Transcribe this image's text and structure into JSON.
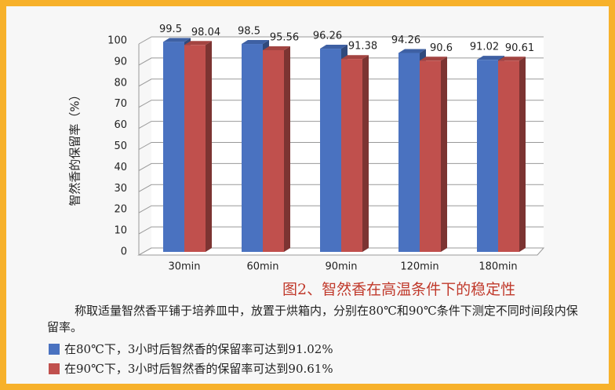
{
  "chart_data": {
    "type": "bar",
    "y_label": "智然香的保留率（%）",
    "caption": "图2、智然香在高温条件下的稳定性",
    "description": "称取适量智然香平铺于培养皿中，放置于烘箱内，分别在80℃和90℃条件下测定不同时间段内保留率。",
    "categories": [
      "30min",
      "60min",
      "90min",
      "120min",
      "180min"
    ],
    "series": [
      {
        "name": "在80℃下，3小时后智然香的保留率可达到91.02%",
        "color": "#4a72c0",
        "values": [
          99.5,
          98.5,
          96.26,
          94.26,
          91.02
        ]
      },
      {
        "name": "在90℃下，3小时后智然香的保留率可达到90.61%",
        "color": "#c0504d",
        "values": [
          98.04,
          95.56,
          91.38,
          90.6,
          90.61
        ]
      }
    ],
    "ylim": [
      0,
      100
    ],
    "yticks": [
      0,
      10,
      20,
      30,
      40,
      50,
      60,
      70,
      80,
      90,
      100
    ],
    "grid": true
  }
}
